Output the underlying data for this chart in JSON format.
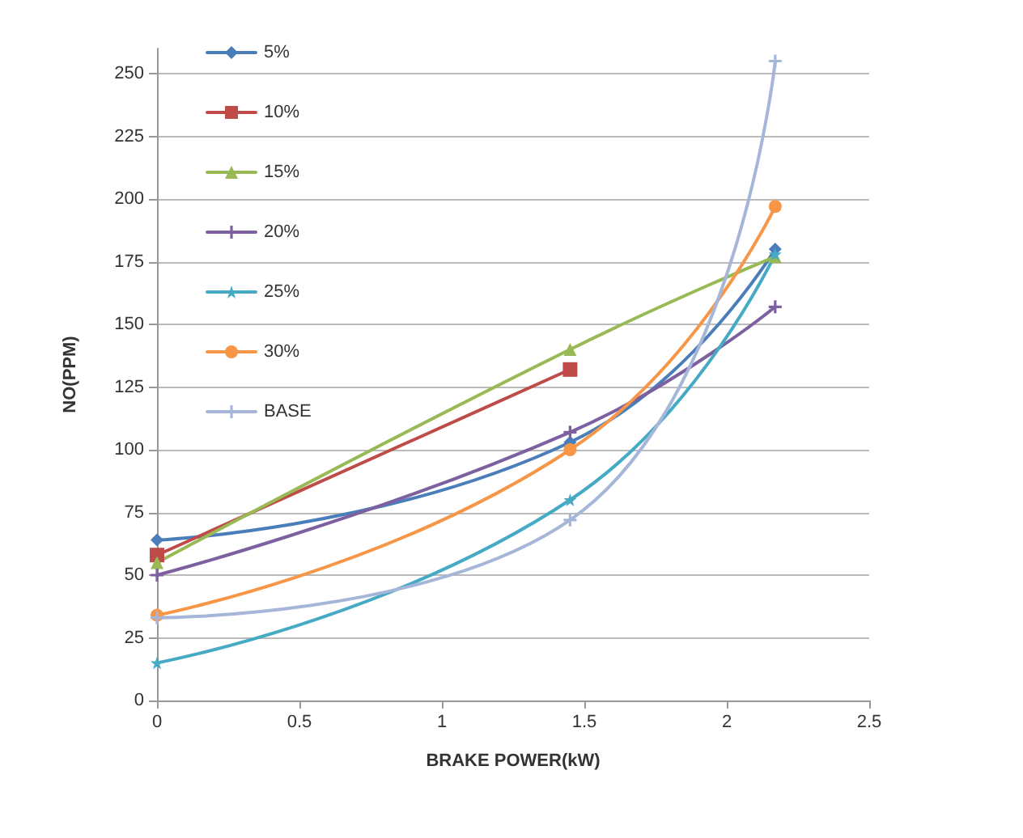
{
  "chart_data": {
    "type": "line",
    "xlabel": "BRAKE POWER(kW)",
    "ylabel": "NO(PPM)",
    "x": [
      0,
      1.45,
      2.17
    ],
    "series": [
      {
        "name": "5%",
        "color": "#4a7ebb",
        "marker": "diamond",
        "values": [
          64,
          103,
          180
        ]
      },
      {
        "name": "10%",
        "color": "#be4b48",
        "marker": "square",
        "values": [
          58,
          132,
          null
        ]
      },
      {
        "name": "15%",
        "color": "#98b954",
        "marker": "triangle",
        "values": [
          55,
          140,
          177
        ]
      },
      {
        "name": "20%",
        "color": "#7d60a0",
        "marker": "cross",
        "values": [
          50,
          107,
          157
        ]
      },
      {
        "name": "25%",
        "color": "#46aac5",
        "marker": "star",
        "values": [
          15,
          80,
          178
        ]
      },
      {
        "name": "30%",
        "color": "#f79646",
        "marker": "circle",
        "values": [
          34,
          100,
          197
        ]
      },
      {
        "name": "BASE",
        "color": "#a5b6d9",
        "marker": "cross",
        "values": [
          33,
          72,
          255
        ]
      }
    ],
    "xlim": [
      0,
      2.5
    ],
    "xticks": [
      0,
      0.5,
      1,
      1.5,
      2,
      2.5
    ],
    "ylim": [
      0,
      260
    ],
    "yticks": [
      0,
      25,
      50,
      75,
      100,
      125,
      150,
      175,
      200,
      225,
      250
    ],
    "grid": "y",
    "legend": "top left",
    "line_style": "solid"
  }
}
